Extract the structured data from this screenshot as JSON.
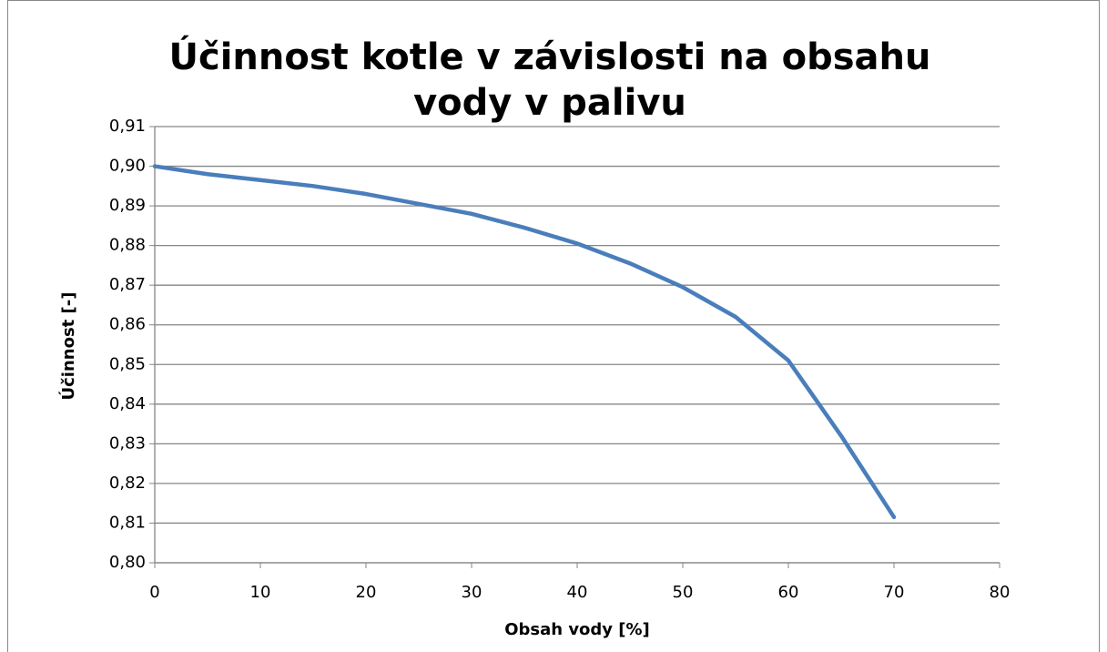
{
  "chart_data": {
    "type": "line",
    "title": "Účinnost kotle v závislosti na obsahu vody v palivu",
    "xlabel": "Obsah vody [%]",
    "ylabel": "Účinnost [-]",
    "x": [
      0,
      5,
      10,
      15,
      20,
      25,
      30,
      35,
      40,
      45,
      50,
      55,
      60,
      65,
      70
    ],
    "series": [
      {
        "name": "Účinnost",
        "color": "#4a7ebb",
        "values": [
          0.9,
          0.898,
          0.8965,
          0.895,
          0.893,
          0.8905,
          0.888,
          0.8845,
          0.8805,
          0.8755,
          0.8695,
          0.862,
          0.851,
          0.832,
          0.8115
        ]
      }
    ],
    "xlim": [
      0,
      80
    ],
    "xticks": [
      0,
      10,
      20,
      30,
      40,
      50,
      60,
      70,
      80
    ],
    "ylim": [
      0.8,
      0.91
    ],
    "yticks": [
      {
        "value": 0.8,
        "label": "0,80"
      },
      {
        "value": 0.81,
        "label": "0,81"
      },
      {
        "value": 0.82,
        "label": "0,82"
      },
      {
        "value": 0.83,
        "label": "0,83"
      },
      {
        "value": 0.84,
        "label": "0,84"
      },
      {
        "value": 0.85,
        "label": "0,85"
      },
      {
        "value": 0.86,
        "label": "0,86"
      },
      {
        "value": 0.87,
        "label": "0,87"
      },
      {
        "value": 0.88,
        "label": "0,88"
      },
      {
        "value": 0.89,
        "label": "0,89"
      },
      {
        "value": 0.9,
        "label": "0,90"
      },
      {
        "value": 0.91,
        "label": "0,91"
      }
    ],
    "grid": true
  }
}
